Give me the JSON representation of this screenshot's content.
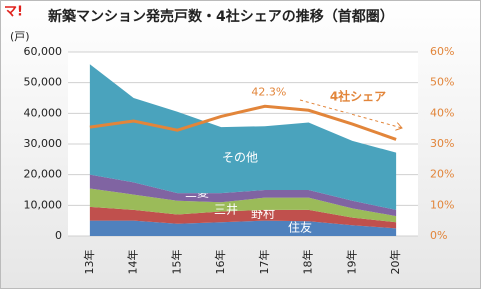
{
  "chart_data": {
    "type": "stacked-area-line",
    "logo": "マ!",
    "title": "新築マンション発売戸数・4社シェアの推移（首都圏）",
    "y_label": "(戸)",
    "categories": [
      "13年",
      "14年",
      "15年",
      "16年",
      "17年",
      "18年",
      "19年",
      "20年"
    ],
    "series": [
      {
        "name": "住友",
        "color": "#4f81bd",
        "values": [
          5000,
          5000,
          4000,
          4500,
          5000,
          4800,
          3500,
          2500
        ]
      },
      {
        "name": "野村",
        "color": "#c0504d",
        "values": [
          4500,
          3500,
          3000,
          3500,
          3500,
          3700,
          2500,
          2000
        ]
      },
      {
        "name": "三井",
        "color": "#9bbb59",
        "values": [
          6000,
          5000,
          4500,
          3000,
          4000,
          4000,
          3000,
          2000
        ]
      },
      {
        "name": "三菱",
        "color": "#8064a2",
        "values": [
          4500,
          4000,
          2500,
          3000,
          2500,
          2500,
          2500,
          2000
        ]
      },
      {
        "name": "その他",
        "color": "#4aa3bd",
        "values": [
          36000,
          27500,
          26500,
          21500,
          20800,
          22000,
          19500,
          18700
        ]
      },
      {
        "name": "4社シェア",
        "color": "#e2853a",
        "axis": "y2",
        "values": [
          35.5,
          37.5,
          34.5,
          39,
          42.3,
          41,
          36.5,
          31.5
        ],
        "value_labels": [
          null,
          null,
          null,
          null,
          "42.3%",
          null,
          null,
          null
        ]
      }
    ],
    "ylim": [
      0,
      60000
    ],
    "yticks": [
      {
        "value": 0,
        "label": "0"
      },
      {
        "value": 10000,
        "label": "10,000"
      },
      {
        "value": 20000,
        "label": "20,000"
      },
      {
        "value": 30000,
        "label": "30,000"
      },
      {
        "value": 40000,
        "label": "40,000"
      },
      {
        "value": 50000,
        "label": "50,000"
      },
      {
        "value": 60000,
        "label": "60,000"
      }
    ],
    "y2lim": [
      0,
      60
    ],
    "y2ticks": [
      {
        "value": 0,
        "label": "0%"
      },
      {
        "value": 10,
        "label": "10%"
      },
      {
        "value": 20,
        "label": "20%"
      },
      {
        "value": 30,
        "label": "30%"
      },
      {
        "value": 40,
        "label": "40%"
      },
      {
        "value": 50,
        "label": "50%"
      },
      {
        "value": 60,
        "label": "60%"
      }
    ],
    "grid": true
  }
}
